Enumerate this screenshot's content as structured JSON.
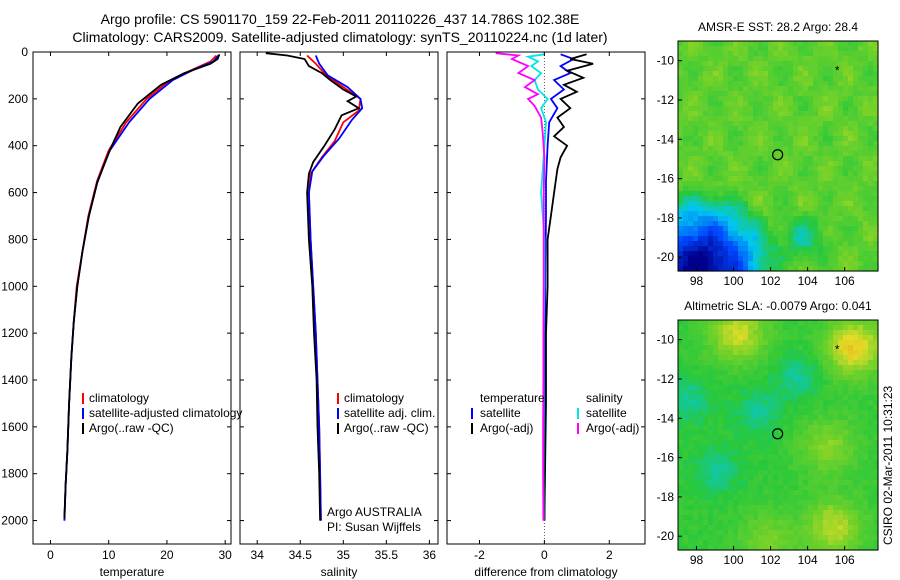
{
  "header": {
    "line1": "Argo profile: CS 5901170_159 22-Feb-2011 20110226_437 14.786S 102.38E",
    "line2": "Climatology: CARS2009. Satellite-adjusted climatology: synTS_20110224.nc (1d later)"
  },
  "side_stamp": "CSIRO 02-Mar-2011 10:31:23",
  "chart_data": [
    {
      "type": "line",
      "xlabel": "temperature",
      "xlim": [
        -3,
        31
      ],
      "ylim": [
        2100,
        0
      ],
      "xticks": [
        "0",
        "10",
        "20",
        "30"
      ],
      "yticks": [
        "0",
        "200",
        "400",
        "600",
        "800",
        "1000",
        "1200",
        "1400",
        "1600",
        "1800",
        "2000"
      ],
      "legend": [
        {
          "label": "climatology",
          "color": "#ff0000"
        },
        {
          "label": "satellite-adjusted climatology",
          "color": "#0000ff"
        },
        {
          "label": "Argo(..raw -QC)",
          "color": "#000000"
        }
      ],
      "series": [
        {
          "color": "#ff0000",
          "points": [
            [
              28.5,
              15
            ],
            [
              27.5,
              40
            ],
            [
              24,
              80
            ],
            [
              20,
              130
            ],
            [
              16.5,
              200
            ],
            [
              13,
              300
            ],
            [
              10,
              420
            ],
            [
              8,
              550
            ],
            [
              6.5,
              700
            ],
            [
              5.5,
              850
            ],
            [
              4.5,
              1000
            ],
            [
              4,
              1150
            ],
            [
              3.6,
              1300
            ],
            [
              3.2,
              1500
            ],
            [
              2.9,
              1700
            ],
            [
              2.6,
              1850
            ],
            [
              2.4,
              2000
            ]
          ]
        },
        {
          "color": "#0000ff",
          "points": [
            [
              28.8,
              15
            ],
            [
              28,
              40
            ],
            [
              25,
              70
            ],
            [
              21,
              120
            ],
            [
              17,
              200
            ],
            [
              13.5,
              300
            ],
            [
              10.2,
              420
            ],
            [
              8.1,
              550
            ],
            [
              6.6,
              700
            ],
            [
              5.5,
              850
            ],
            [
              4.6,
              1000
            ],
            [
              4,
              1150
            ],
            [
              3.6,
              1300
            ],
            [
              3.2,
              1500
            ],
            [
              2.9,
              1700
            ],
            [
              2.6,
              1850
            ],
            [
              2.4,
              2000
            ]
          ]
        },
        {
          "color": "#000000",
          "points": [
            [
              29,
              10
            ],
            [
              28.7,
              30
            ],
            [
              27.5,
              50
            ],
            [
              23,
              90
            ],
            [
              19,
              140
            ],
            [
              15,
              220
            ],
            [
              12,
              320
            ],
            [
              10,
              430
            ],
            [
              8,
              560
            ],
            [
              6.6,
              700
            ],
            [
              5.5,
              850
            ],
            [
              4.6,
              1000
            ],
            [
              4,
              1150
            ],
            [
              3.6,
              1300
            ],
            [
              3.2,
              1500
            ],
            [
              2.9,
              1700
            ],
            [
              2.6,
              1850
            ],
            [
              2.4,
              1990
            ]
          ]
        }
      ]
    },
    {
      "type": "line",
      "xlabel": "salinity",
      "xlim": [
        33.8,
        36.1
      ],
      "ylim": [
        2100,
        0
      ],
      "xticks": [
        "34",
        "34.5",
        "35",
        "35.5",
        "36"
      ],
      "legend": [
        {
          "label": "climatology",
          "color": "#ff0000"
        },
        {
          "label": "satellite adj. clim.",
          "color": "#0000ff"
        },
        {
          "label": "Argo(..raw -QC)",
          "color": "#000000"
        }
      ],
      "annotation": [
        "Argo AUSTRALIA",
        "PI: Susan Wijffels"
      ],
      "series": [
        {
          "color": "#ff0000",
          "points": [
            [
              34.58,
              15
            ],
            [
              34.68,
              50
            ],
            [
              34.8,
              100
            ],
            [
              35.0,
              150
            ],
            [
              35.2,
              200
            ],
            [
              35.18,
              250
            ],
            [
              35.0,
              300
            ],
            [
              34.9,
              380
            ],
            [
              34.75,
              450
            ],
            [
              34.62,
              520
            ],
            [
              34.6,
              600
            ],
            [
              34.62,
              800
            ],
            [
              34.65,
              1000
            ],
            [
              34.68,
              1200
            ],
            [
              34.7,
              1400
            ],
            [
              34.72,
              1600
            ],
            [
              34.73,
              1800
            ],
            [
              34.74,
              2000
            ]
          ]
        },
        {
          "color": "#0000ff",
          "points": [
            [
              34.68,
              15
            ],
            [
              34.72,
              50
            ],
            [
              34.82,
              100
            ],
            [
              35.05,
              150
            ],
            [
              35.2,
              200
            ],
            [
              35.22,
              240
            ],
            [
              35.1,
              290
            ],
            [
              34.95,
              370
            ],
            [
              34.78,
              440
            ],
            [
              34.64,
              510
            ],
            [
              34.6,
              600
            ],
            [
              34.62,
              800
            ],
            [
              34.65,
              1000
            ],
            [
              34.68,
              1200
            ],
            [
              34.7,
              1400
            ],
            [
              34.72,
              1600
            ],
            [
              34.73,
              1800
            ],
            [
              34.74,
              2000
            ]
          ]
        },
        {
          "color": "#000000",
          "points": [
            [
              34.1,
              5
            ],
            [
              34.35,
              15
            ],
            [
              34.55,
              30
            ],
            [
              34.6,
              60
            ],
            [
              34.75,
              90
            ],
            [
              34.85,
              120
            ],
            [
              35.0,
              160
            ],
            [
              35.15,
              190
            ],
            [
              35.05,
              210
            ],
            [
              35.18,
              240
            ],
            [
              34.98,
              270
            ],
            [
              34.9,
              330
            ],
            [
              34.78,
              400
            ],
            [
              34.65,
              470
            ],
            [
              34.6,
              520
            ],
            [
              34.58,
              600
            ],
            [
              34.6,
              800
            ],
            [
              34.64,
              1000
            ],
            [
              34.66,
              1200
            ],
            [
              34.69,
              1400
            ],
            [
              34.7,
              1600
            ],
            [
              34.72,
              1800
            ],
            [
              34.73,
              2000
            ]
          ]
        }
      ]
    },
    {
      "type": "line",
      "xlabel": "difference from climatology",
      "xlim": [
        -3,
        3.1
      ],
      "ylim": [
        2100,
        0
      ],
      "xticks": [
        "-2",
        "0",
        "2"
      ],
      "legend": [
        {
          "label": "temperature",
          "color": "none"
        },
        {
          "label": "satellite",
          "color": "#0000ff"
        },
        {
          "label": "Argo(-adj)",
          "color": "#000000"
        },
        {
          "label": "salinity",
          "color": "none"
        },
        {
          "label": "satellite",
          "color": "#00e5e5"
        },
        {
          "label": "Argo(-adj)",
          "color": "#ff00ff"
        }
      ],
      "series": [
        {
          "name": "temperature satellite",
          "color": "#0000ff",
          "points": [
            [
              0.5,
              10
            ],
            [
              0.9,
              30
            ],
            [
              0.5,
              60
            ],
            [
              0.8,
              90
            ],
            [
              0.3,
              120
            ],
            [
              0.6,
              160
            ],
            [
              0.2,
              200
            ],
            [
              0.4,
              240
            ],
            [
              0.15,
              300
            ],
            [
              0.1,
              400
            ],
            [
              0.05,
              550
            ],
            [
              0.05,
              700
            ],
            [
              0.03,
              900
            ],
            [
              0.02,
              1200
            ],
            [
              0.02,
              1500
            ],
            [
              0.01,
              1800
            ],
            [
              0.0,
              2000
            ]
          ]
        },
        {
          "name": "temperature Argo",
          "color": "#000000",
          "points": [
            [
              1.3,
              10
            ],
            [
              0.8,
              30
            ],
            [
              1.5,
              50
            ],
            [
              0.7,
              80
            ],
            [
              1.2,
              110
            ],
            [
              0.6,
              140
            ],
            [
              1.0,
              170
            ],
            [
              0.5,
              200
            ],
            [
              0.8,
              240
            ],
            [
              0.4,
              280
            ],
            [
              0.6,
              320
            ],
            [
              0.3,
              360
            ],
            [
              0.7,
              400
            ],
            [
              0.5,
              450
            ],
            [
              0.4,
              500
            ],
            [
              0.3,
              600
            ],
            [
              0.2,
              700
            ],
            [
              0.1,
              800
            ],
            [
              0.1,
              1000
            ],
            [
              0.05,
              1200
            ],
            [
              0.05,
              1500
            ],
            [
              0.02,
              1800
            ],
            [
              0.0,
              2000
            ]
          ]
        },
        {
          "name": "salinity satellite",
          "color": "#00e5e5",
          "points": [
            [
              0.0,
              10
            ],
            [
              -0.5,
              20
            ],
            [
              -0.2,
              40
            ],
            [
              -0.4,
              60
            ],
            [
              -0.1,
              90
            ],
            [
              -0.3,
              120
            ],
            [
              -0.2,
              160
            ],
            [
              0.1,
              200
            ],
            [
              -0.1,
              240
            ],
            [
              0.05,
              300
            ],
            [
              0.0,
              400
            ],
            [
              -0.05,
              500
            ],
            [
              -0.1,
              600
            ],
            [
              -0.05,
              700
            ],
            [
              0.0,
              800
            ],
            [
              0.0,
              1000
            ],
            [
              -0.02,
              1200
            ],
            [
              -0.02,
              1500
            ],
            [
              -0.03,
              1800
            ],
            [
              -0.02,
              2000
            ]
          ]
        },
        {
          "name": "salinity Argo",
          "color": "#ff00ff",
          "points": [
            [
              -1.5,
              5
            ],
            [
              -0.8,
              15
            ],
            [
              -1.0,
              30
            ],
            [
              -0.5,
              60
            ],
            [
              -0.8,
              90
            ],
            [
              -0.3,
              120
            ],
            [
              -0.6,
              150
            ],
            [
              -0.2,
              180
            ],
            [
              -0.5,
              200
            ],
            [
              -0.3,
              230
            ],
            [
              -0.1,
              280
            ],
            [
              -0.05,
              350
            ],
            [
              0.0,
              450
            ],
            [
              -0.02,
              600
            ],
            [
              -0.02,
              800
            ],
            [
              -0.02,
              1000
            ],
            [
              -0.03,
              1200
            ],
            [
              -0.03,
              1400
            ],
            [
              -0.04,
              1600
            ],
            [
              -0.04,
              1800
            ],
            [
              -0.03,
              2000
            ]
          ]
        }
      ]
    },
    {
      "type": "heatmap",
      "title": "AMSR-E SST: 28.2 Argo: 28.4",
      "xlim": [
        97,
        107.8
      ],
      "ylim": [
        -20.7,
        -9
      ],
      "xticks": [
        "98",
        "100",
        "102",
        "104",
        "106"
      ],
      "yticks": [
        "-10",
        "-12",
        "-14",
        "-16",
        "-18",
        "-20"
      ],
      "marker_lon": 102.38,
      "marker_lat": -14.786,
      "star_lon": 105.6,
      "star_lat": -10.5,
      "palette": "sst"
    },
    {
      "type": "heatmap",
      "title": "Altimetric SLA: -0.0079 Argo: 0.041",
      "xlim": [
        97,
        107.8
      ],
      "ylim": [
        -20.7,
        -9
      ],
      "xticks": [
        "98",
        "100",
        "102",
        "104",
        "106"
      ],
      "yticks": [
        "-10",
        "-12",
        "-14",
        "-16",
        "-18",
        "-20"
      ],
      "marker_lon": 102.38,
      "marker_lat": -14.786,
      "star_lon": 105.6,
      "star_lat": -10.5,
      "palette": "sla"
    }
  ]
}
